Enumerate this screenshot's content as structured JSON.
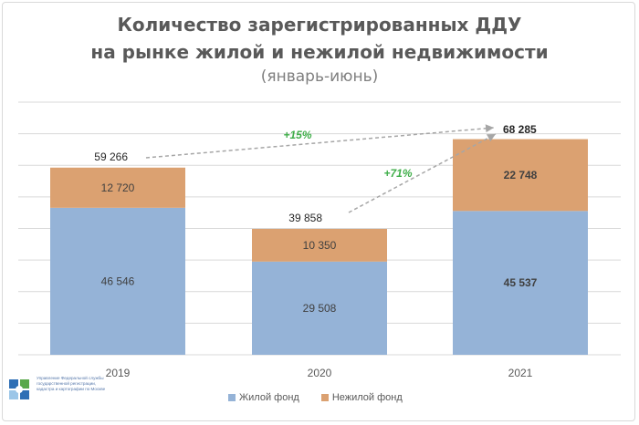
{
  "title_line_1": "Количество зарегистрированных ДДУ",
  "title_line_2": "на рынке жилой и нежилой недвижимости",
  "subtitle": "(январь-июнь)",
  "colors": {
    "residential": "#95b3d7",
    "nonresidential": "#dba171",
    "growth": "#3fae49",
    "arrow": "#a6a6a6",
    "grid": "#d9d9d9"
  },
  "logo": {
    "text": "Управление Федеральной службы государственной регистрации, кадастра и картографии по Москве"
  },
  "chart_data": {
    "type": "bar",
    "stacked": true,
    "categories": [
      "2019",
      "2020",
      "2021"
    ],
    "series": [
      {
        "name": "Жилой фонд",
        "values": [
          46546,
          29508,
          45537
        ],
        "labels": [
          "46 546",
          "29 508",
          "45 537"
        ]
      },
      {
        "name": "Нежилой фонд",
        "values": [
          12720,
          10350,
          22748
        ],
        "labels": [
          "12 720",
          "10 350",
          "22 748"
        ]
      }
    ],
    "totals": [
      59266,
      39858,
      68285
    ],
    "total_labels": [
      "59 266",
      "39 858",
      "68 285"
    ],
    "annotations": [
      {
        "text": "+15%",
        "from": "2019",
        "to": "2021"
      },
      {
        "text": "+71%",
        "from": "2020",
        "to": "2021"
      }
    ],
    "ylim": [
      0,
      80000
    ],
    "grid": true,
    "legend": "bottom"
  }
}
